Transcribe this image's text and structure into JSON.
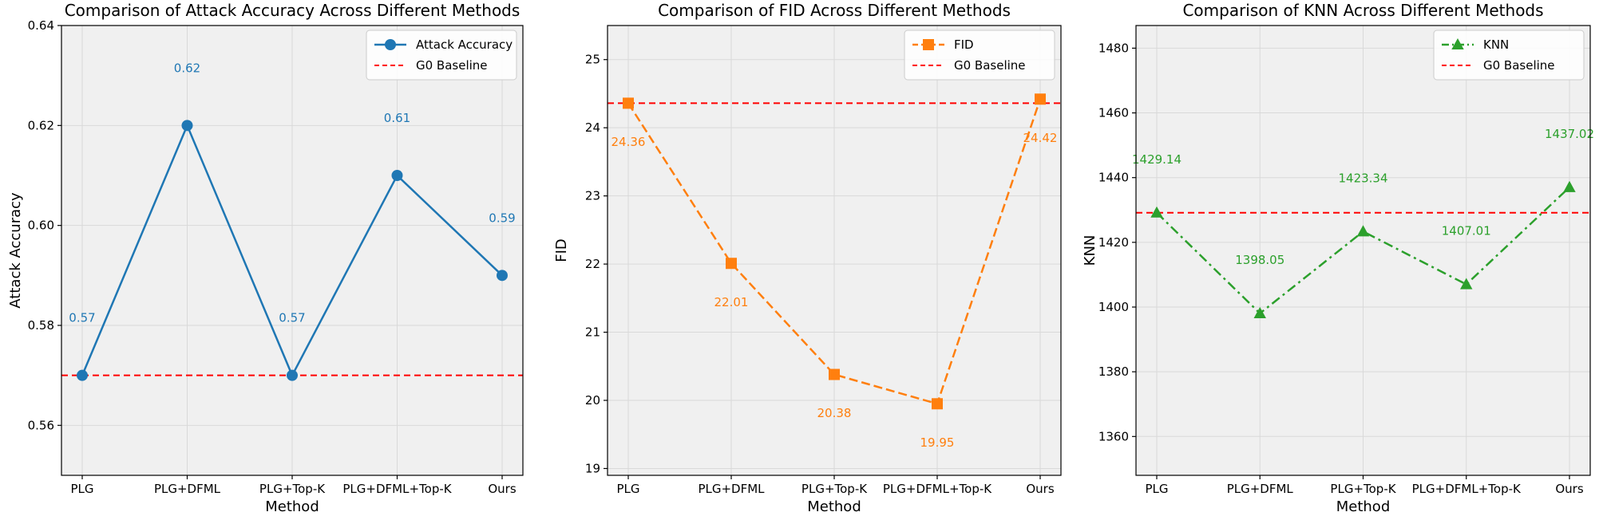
{
  "chart_data": [
    {
      "type": "line",
      "title": "Comparison of Attack Accuracy Across Different Methods",
      "xlabel": "Method",
      "ylabel": "Attack Accuracy",
      "categories": [
        "PLG",
        "PLG+DFML",
        "PLG+Top-K",
        "PLG+DFML+Top-K",
        "Ours"
      ],
      "ylim": [
        0.55,
        0.64
      ],
      "yticks": [
        0.56,
        0.58,
        0.6,
        0.62,
        0.64
      ],
      "ytick_labels": [
        "0.56",
        "0.58",
        "0.60",
        "0.62",
        "0.64"
      ],
      "series": [
        {
          "name": "Attack Accuracy",
          "values": [
            0.57,
            0.62,
            0.57,
            0.61,
            0.59
          ],
          "color": "#1f77b4",
          "marker": "circle",
          "linestyle": "solid"
        }
      ],
      "data_labels": [
        "0.57",
        "0.62",
        "0.57",
        "0.61",
        "0.59"
      ],
      "label_offset": 0.0115,
      "baseline": {
        "name": "G0 Baseline",
        "value": 0.57,
        "color": "#ff0000"
      },
      "legend_position": "top-right",
      "grid": true
    },
    {
      "type": "line",
      "title": "Comparison of FID Across Different Methods",
      "xlabel": "Method",
      "ylabel": "FID",
      "categories": [
        "PLG",
        "PLG+DFML",
        "PLG+Top-K",
        "PLG+DFML+Top-K",
        "Ours"
      ],
      "ylim": [
        18.9,
        25.5
      ],
      "yticks": [
        19,
        20,
        21,
        22,
        23,
        24,
        25
      ],
      "ytick_labels": [
        "19",
        "20",
        "21",
        "22",
        "23",
        "24",
        "25"
      ],
      "series": [
        {
          "name": "FID",
          "values": [
            24.36,
            22.01,
            20.38,
            19.95,
            24.42
          ],
          "color": "#ff7f0e",
          "marker": "square",
          "linestyle": "dashed"
        }
      ],
      "data_labels": [
        "24.36",
        "22.01",
        "20.38",
        "19.95",
        "24.42"
      ],
      "label_offset": -0.57,
      "baseline": {
        "name": "G0 Baseline",
        "value": 24.36,
        "color": "#ff0000"
      },
      "legend_position": "top-right",
      "grid": true
    },
    {
      "type": "line",
      "title": "Comparison of KNN Across Different Methods",
      "xlabel": "Method",
      "ylabel": "KNN",
      "categories": [
        "PLG",
        "PLG+DFML",
        "PLG+Top-K",
        "PLG+DFML+Top-K",
        "Ours"
      ],
      "ylim": [
        1348,
        1487
      ],
      "yticks": [
        1360,
        1380,
        1400,
        1420,
        1440,
        1460,
        1480
      ],
      "ytick_labels": [
        "1360",
        "1380",
        "1400",
        "1420",
        "1440",
        "1460",
        "1480"
      ],
      "series": [
        {
          "name": "KNN",
          "values": [
            1429.14,
            1398.05,
            1423.34,
            1407.01,
            1437.02
          ],
          "color": "#2ca02c",
          "marker": "triangle",
          "linestyle": "dashdot"
        }
      ],
      "data_labels": [
        "1429.14",
        "1398.05",
        "1423.34",
        "1407.01",
        "1437.02"
      ],
      "label_offsets": [
        16,
        16,
        16,
        16,
        16
      ],
      "baseline": {
        "name": "G0 Baseline",
        "value": 1429.14,
        "color": "#ff0000"
      },
      "legend_position": "top-right",
      "grid": true
    }
  ]
}
